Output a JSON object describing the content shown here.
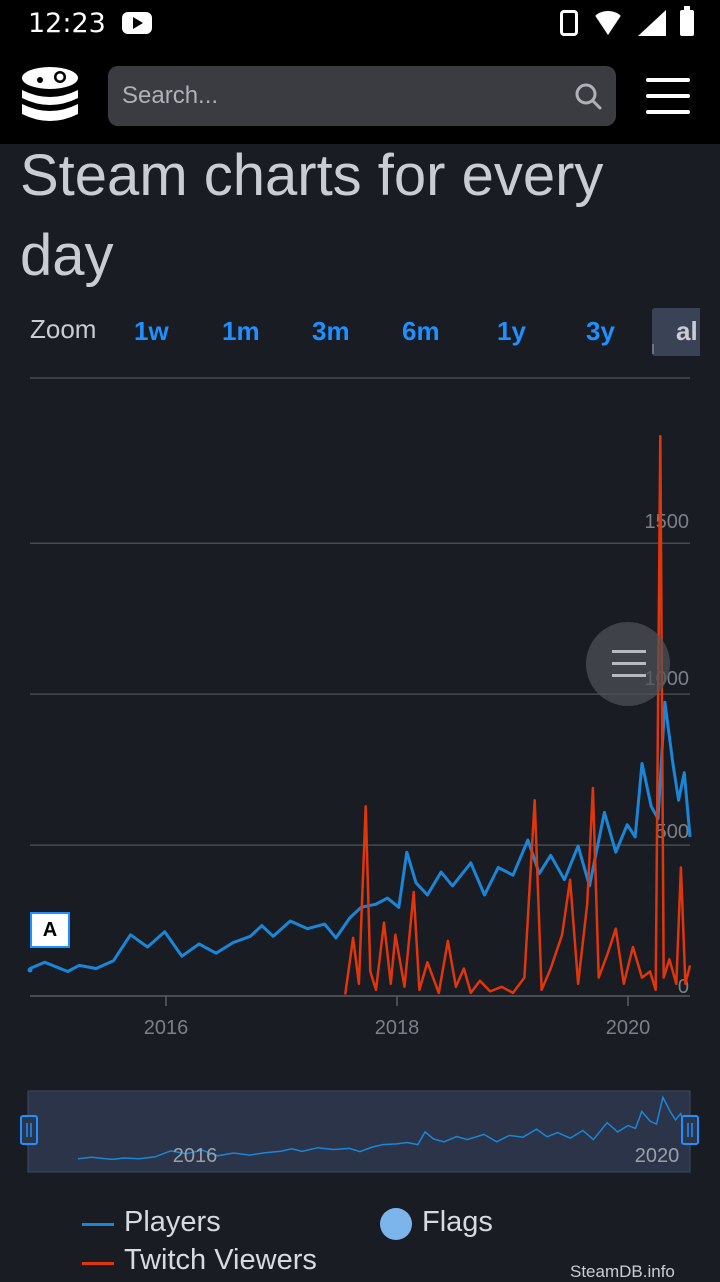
{
  "status_bar": {
    "time": "12:23"
  },
  "header": {
    "search_placeholder": "Search..."
  },
  "page": {
    "title": "Steam charts for every day"
  },
  "zoom": {
    "label": "Zoom",
    "options": [
      "1w",
      "1m",
      "3m",
      "6m",
      "1y",
      "3y",
      "all"
    ],
    "selected": "all",
    "selected_visible_text": "al"
  },
  "chart_data": {
    "type": "line",
    "x_ticks": [
      "2016",
      "2018",
      "2020"
    ],
    "y_ticks": [
      "1500",
      "1000",
      "500",
      "0"
    ],
    "ylim": [
      0,
      1850
    ],
    "grid": true,
    "legend_position": "bottom",
    "flag_label": "A",
    "series": [
      {
        "name": "Players",
        "color": "#1a86d8",
        "points": [
          [
            2014.92,
            90
          ],
          [
            2015.05,
            110
          ],
          [
            2015.25,
            80
          ],
          [
            2015.35,
            100
          ],
          [
            2015.5,
            90
          ],
          [
            2015.65,
            115
          ],
          [
            2015.8,
            200
          ],
          [
            2015.95,
            160
          ],
          [
            2016.1,
            210
          ],
          [
            2016.25,
            130
          ],
          [
            2016.4,
            170
          ],
          [
            2016.55,
            140
          ],
          [
            2016.7,
            175
          ],
          [
            2016.85,
            195
          ],
          [
            2016.95,
            230
          ],
          [
            2017.05,
            195
          ],
          [
            2017.2,
            245
          ],
          [
            2017.35,
            220
          ],
          [
            2017.5,
            235
          ],
          [
            2017.6,
            190
          ],
          [
            2017.72,
            255
          ],
          [
            2017.82,
            290
          ],
          [
            2017.95,
            300
          ],
          [
            2018.05,
            320
          ],
          [
            2018.15,
            290
          ],
          [
            2018.22,
            470
          ],
          [
            2018.3,
            370
          ],
          [
            2018.4,
            330
          ],
          [
            2018.52,
            405
          ],
          [
            2018.62,
            360
          ],
          [
            2018.78,
            435
          ],
          [
            2018.9,
            330
          ],
          [
            2019.02,
            420
          ],
          [
            2019.15,
            395
          ],
          [
            2019.28,
            510
          ],
          [
            2019.38,
            400
          ],
          [
            2019.48,
            460
          ],
          [
            2019.6,
            380
          ],
          [
            2019.72,
            490
          ],
          [
            2019.82,
            360
          ],
          [
            2019.95,
            600
          ],
          [
            2020.05,
            470
          ],
          [
            2020.15,
            560
          ],
          [
            2020.22,
            520
          ],
          [
            2020.28,
            760
          ],
          [
            2020.36,
            620
          ],
          [
            2020.42,
            580
          ],
          [
            2020.48,
            960
          ],
          [
            2020.55,
            760
          ],
          [
            2020.6,
            640
          ],
          [
            2020.65,
            730
          ],
          [
            2020.7,
            520
          ]
        ]
      },
      {
        "name": "Twitch Viewers",
        "color": "#e0360c",
        "points": [
          [
            2017.68,
            5
          ],
          [
            2017.75,
            190
          ],
          [
            2017.8,
            40
          ],
          [
            2017.86,
            620
          ],
          [
            2017.9,
            80
          ],
          [
            2017.95,
            20
          ],
          [
            2018.02,
            240
          ],
          [
            2018.08,
            40
          ],
          [
            2018.12,
            200
          ],
          [
            2018.2,
            30
          ],
          [
            2018.28,
            340
          ],
          [
            2018.33,
            20
          ],
          [
            2018.4,
            110
          ],
          [
            2018.5,
            10
          ],
          [
            2018.58,
            180
          ],
          [
            2018.65,
            30
          ],
          [
            2018.72,
            90
          ],
          [
            2018.78,
            10
          ],
          [
            2018.86,
            50
          ],
          [
            2018.95,
            15
          ],
          [
            2019.05,
            30
          ],
          [
            2019.15,
            10
          ],
          [
            2019.25,
            60
          ],
          [
            2019.34,
            640
          ],
          [
            2019.4,
            20
          ],
          [
            2019.48,
            90
          ],
          [
            2019.58,
            200
          ],
          [
            2019.65,
            380
          ],
          [
            2019.72,
            40
          ],
          [
            2019.8,
            300
          ],
          [
            2019.85,
            680
          ],
          [
            2019.9,
            60
          ],
          [
            2019.98,
            140
          ],
          [
            2020.05,
            220
          ],
          [
            2020.12,
            40
          ],
          [
            2020.2,
            160
          ],
          [
            2020.28,
            60
          ],
          [
            2020.35,
            80
          ],
          [
            2020.4,
            20
          ],
          [
            2020.44,
            1830
          ],
          [
            2020.47,
            60
          ],
          [
            2020.52,
            120
          ],
          [
            2020.58,
            40
          ],
          [
            2020.62,
            420
          ],
          [
            2020.66,
            40
          ],
          [
            2020.7,
            100
          ]
        ]
      }
    ]
  },
  "navigator": {
    "labels": [
      "2016",
      "2020"
    ]
  },
  "legend": {
    "players_label": "Players",
    "twitch_label": "Twitch Viewers",
    "flags_label": "Flags",
    "players_color": "#1a86d8",
    "twitch_color": "#e0360c",
    "flags_color": "#7cb5ec"
  },
  "credit": "SteamDB.info"
}
